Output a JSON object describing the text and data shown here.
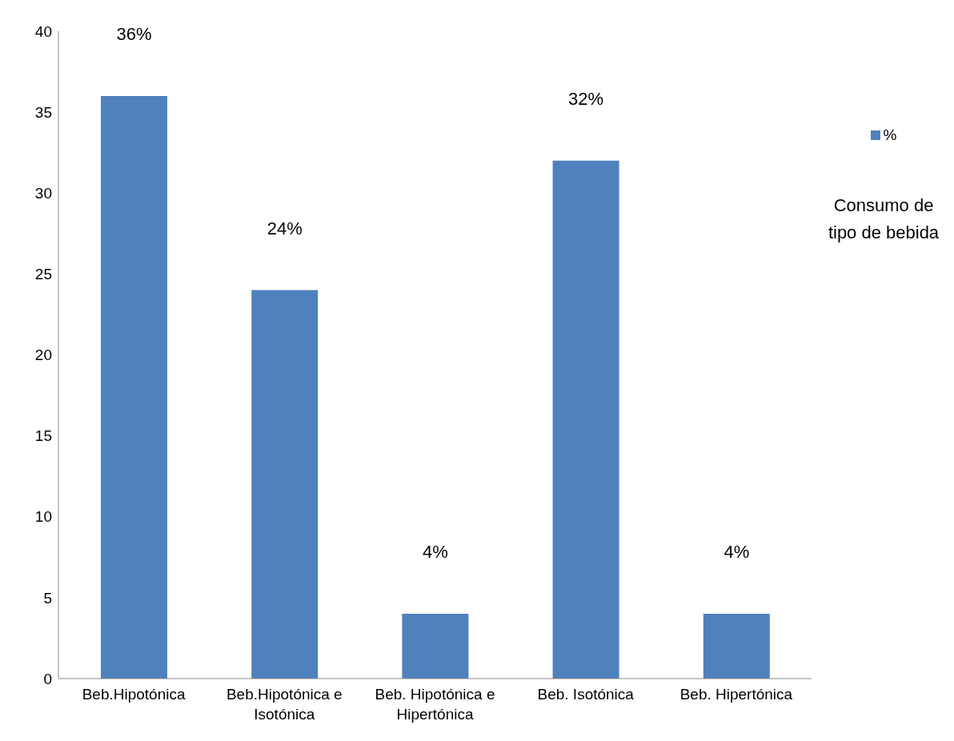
{
  "chart_data": {
    "type": "bar",
    "categories": [
      "Beb.Hipotónica",
      "Beb.Hipotónica e Isotónica",
      "Beb. Hipotónica e Hipertónica",
      "Beb. Isotónica",
      "Beb. Hipertónica"
    ],
    "series": [
      {
        "name": "%",
        "color": "#4f81bd",
        "values": [
          36,
          24,
          4,
          32,
          4
        ],
        "value_labels": [
          "36%",
          "24%",
          "4%",
          "32%",
          "4%"
        ]
      }
    ],
    "ylim": [
      0,
      40
    ],
    "yticks": [
      0,
      5,
      10,
      15,
      20,
      25,
      30,
      35,
      40
    ],
    "grid": false,
    "legend": "right",
    "legend_title": "Consumo de tipo de bebida"
  }
}
